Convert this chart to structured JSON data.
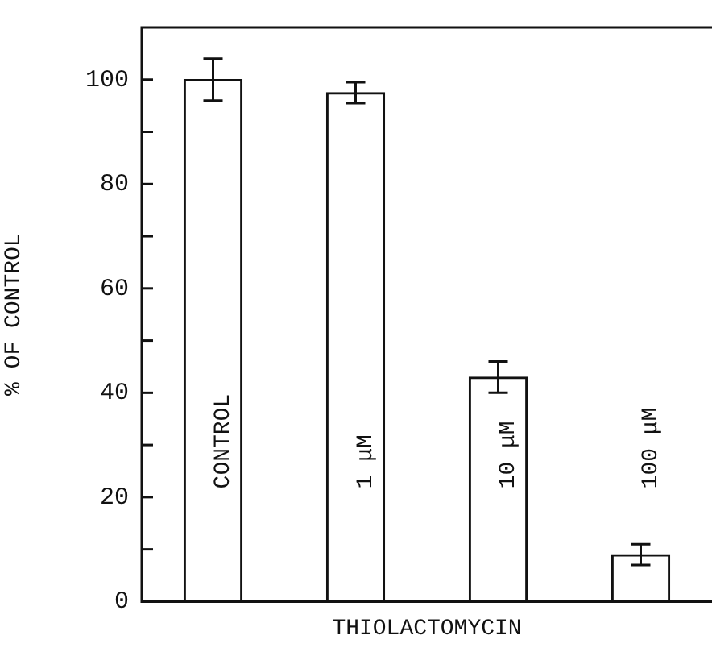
{
  "chart_data": {
    "type": "bar",
    "xlabel": "THIOLACTOMYCIN",
    "ylabel": "% OF CONTROL",
    "categories": [
      "CONTROL",
      "1 μM",
      "10 μM",
      "100 μM"
    ],
    "values": [
      100,
      97.5,
      43,
      9
    ],
    "errors": [
      4,
      2,
      3,
      2
    ],
    "color": "#ffffff",
    "ylim": [
      0,
      110
    ],
    "yticks": [
      0,
      {
        "value": 10,
        "label": null
      },
      20,
      {
        "value": 30,
        "label": null
      },
      40,
      {
        "value": 50,
        "label": null
      },
      60,
      {
        "value": 70,
        "label": null
      },
      80,
      {
        "value": 90,
        "label": null
      },
      100
    ],
    "tick_labels": "y",
    "grid": false,
    "legend": false
  }
}
